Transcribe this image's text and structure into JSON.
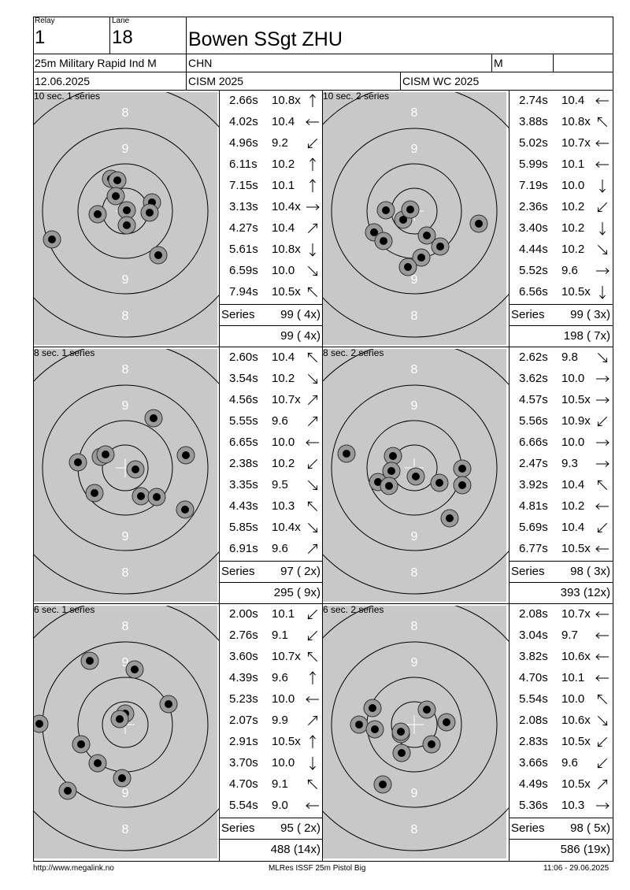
{
  "header": {
    "relay_label": "Relay",
    "relay_value": "1",
    "lane_label": "Lane",
    "lane_value": "18",
    "name": "Bowen SSgt ZHU",
    "event": "25m Military Rapid Ind M",
    "country": "CHN",
    "gender": "M",
    "date": "12.06.2025",
    "competition": "CISM 2025",
    "championship": "CISM WC 2025"
  },
  "series_word": "Series",
  "panels": [
    {
      "title": "10 sec. 1 series",
      "rings": [
        "8",
        "9",
        "9",
        "8"
      ],
      "shots": [
        {
          "time": "2.66s",
          "score": "10.8x",
          "dir": "N"
        },
        {
          "time": "4.02s",
          "score": "10.4",
          "dir": "W"
        },
        {
          "time": "4.96s",
          "score": "9.2",
          "dir": "SW"
        },
        {
          "time": "6.11s",
          "score": "10.2",
          "dir": "N"
        },
        {
          "time": "7.15s",
          "score": "10.1",
          "dir": "N"
        },
        {
          "time": "3.13s",
          "score": "10.4x",
          "dir": "E"
        },
        {
          "time": "4.27s",
          "score": "10.4",
          "dir": "NE"
        },
        {
          "time": "5.61s",
          "score": "10.8x",
          "dir": "S"
        },
        {
          "time": "6.59s",
          "score": "10.0",
          "dir": "SE"
        },
        {
          "time": "7.94s",
          "score": "10.5x",
          "dir": "NW"
        }
      ],
      "series_total": "99 ( 4x)",
      "running_total": "99 ( 4x)"
    },
    {
      "title": "10 sec. 2 series",
      "rings": [
        "8",
        "9",
        "9",
        "8"
      ],
      "shots": [
        {
          "time": "2.74s",
          "score": "10.4",
          "dir": "W"
        },
        {
          "time": "3.88s",
          "score": "10.8x",
          "dir": "NW"
        },
        {
          "time": "5.02s",
          "score": "10.7x",
          "dir": "W"
        },
        {
          "time": "5.99s",
          "score": "10.1",
          "dir": "W"
        },
        {
          "time": "7.19s",
          "score": "10.0",
          "dir": "S"
        },
        {
          "time": "2.36s",
          "score": "10.2",
          "dir": "SW"
        },
        {
          "time": "3.40s",
          "score": "10.2",
          "dir": "S"
        },
        {
          "time": "4.44s",
          "score": "10.2",
          "dir": "SE"
        },
        {
          "time": "5.52s",
          "score": "9.6",
          "dir": "E"
        },
        {
          "time": "6.56s",
          "score": "10.5x",
          "dir": "S"
        }
      ],
      "series_total": "99 ( 3x)",
      "running_total": "198 ( 7x)"
    },
    {
      "title": "8 sec. 1 series",
      "rings": [
        "8",
        "9",
        "9",
        "8"
      ],
      "shots": [
        {
          "time": "2.60s",
          "score": "10.4",
          "dir": "NW"
        },
        {
          "time": "3.54s",
          "score": "10.2",
          "dir": "SE"
        },
        {
          "time": "4.56s",
          "score": "10.7x",
          "dir": "NE"
        },
        {
          "time": "5.55s",
          "score": "9.6",
          "dir": "NE"
        },
        {
          "time": "6.65s",
          "score": "10.0",
          "dir": "W"
        },
        {
          "time": "2.38s",
          "score": "10.2",
          "dir": "SW"
        },
        {
          "time": "3.35s",
          "score": "9.5",
          "dir": "SE"
        },
        {
          "time": "4.43s",
          "score": "10.3",
          "dir": "NW"
        },
        {
          "time": "5.85s",
          "score": "10.4x",
          "dir": "SE"
        },
        {
          "time": "6.91s",
          "score": "9.6",
          "dir": "NE"
        }
      ],
      "series_total": "97 ( 2x)",
      "running_total": "295 ( 9x)"
    },
    {
      "title": "8 sec. 2 series",
      "rings": [
        "8",
        "9",
        "9",
        "8"
      ],
      "shots": [
        {
          "time": "2.62s",
          "score": "9.8",
          "dir": "SE"
        },
        {
          "time": "3.62s",
          "score": "10.0",
          "dir": "E"
        },
        {
          "time": "4.57s",
          "score": "10.5x",
          "dir": "E"
        },
        {
          "time": "5.56s",
          "score": "10.9x",
          "dir": "SW"
        },
        {
          "time": "6.66s",
          "score": "10.0",
          "dir": "E"
        },
        {
          "time": "2.47s",
          "score": "9.3",
          "dir": "E"
        },
        {
          "time": "3.92s",
          "score": "10.4",
          "dir": "NW"
        },
        {
          "time": "4.81s",
          "score": "10.2",
          "dir": "W"
        },
        {
          "time": "5.69s",
          "score": "10.4",
          "dir": "SW"
        },
        {
          "time": "6.77s",
          "score": "10.5x",
          "dir": "W"
        }
      ],
      "series_total": "98 ( 3x)",
      "running_total": "393 (12x)"
    },
    {
      "title": "6 sec. 1 series",
      "rings": [
        "8",
        "9",
        "9",
        "8"
      ],
      "shots": [
        {
          "time": "2.00s",
          "score": "10.1",
          "dir": "SW"
        },
        {
          "time": "2.76s",
          "score": "9.1",
          "dir": "SW"
        },
        {
          "time": "3.60s",
          "score": "10.7x",
          "dir": "NW"
        },
        {
          "time": "4.39s",
          "score": "9.6",
          "dir": "N"
        },
        {
          "time": "5.23s",
          "score": "10.0",
          "dir": "W"
        },
        {
          "time": "2.07s",
          "score": "9.9",
          "dir": "NE"
        },
        {
          "time": "2.91s",
          "score": "10.5x",
          "dir": "N"
        },
        {
          "time": "3.70s",
          "score": "10.0",
          "dir": "S"
        },
        {
          "time": "4.70s",
          "score": "9.1",
          "dir": "NW"
        },
        {
          "time": "5.54s",
          "score": "9.0",
          "dir": "W"
        }
      ],
      "series_total": "95 ( 2x)",
      "running_total": "488 (14x)"
    },
    {
      "title": "6 sec. 2 series",
      "rings": [
        "8",
        "9",
        "9",
        "8"
      ],
      "shots": [
        {
          "time": "2.08s",
          "score": "10.7x",
          "dir": "W"
        },
        {
          "time": "3.04s",
          "score": "9.7",
          "dir": "W"
        },
        {
          "time": "3.82s",
          "score": "10.6x",
          "dir": "W"
        },
        {
          "time": "4.70s",
          "score": "10.1",
          "dir": "W"
        },
        {
          "time": "5.54s",
          "score": "10.0",
          "dir": "NW"
        },
        {
          "time": "2.08s",
          "score": "10.6x",
          "dir": "SE"
        },
        {
          "time": "2.83s",
          "score": "10.5x",
          "dir": "SW"
        },
        {
          "time": "3.66s",
          "score": "9.6",
          "dir": "SW"
        },
        {
          "time": "4.49s",
          "score": "10.5x",
          "dir": "NE"
        },
        {
          "time": "5.36s",
          "score": "10.3",
          "dir": "E"
        }
      ],
      "series_total": "98 ( 5x)",
      "running_total": "586 (19x)"
    }
  ],
  "footer": {
    "left": "http://www.megalink.no",
    "center": "MLRes ISSF 25m Pistol Big",
    "right": "11:06 - 29.06.2025"
  }
}
